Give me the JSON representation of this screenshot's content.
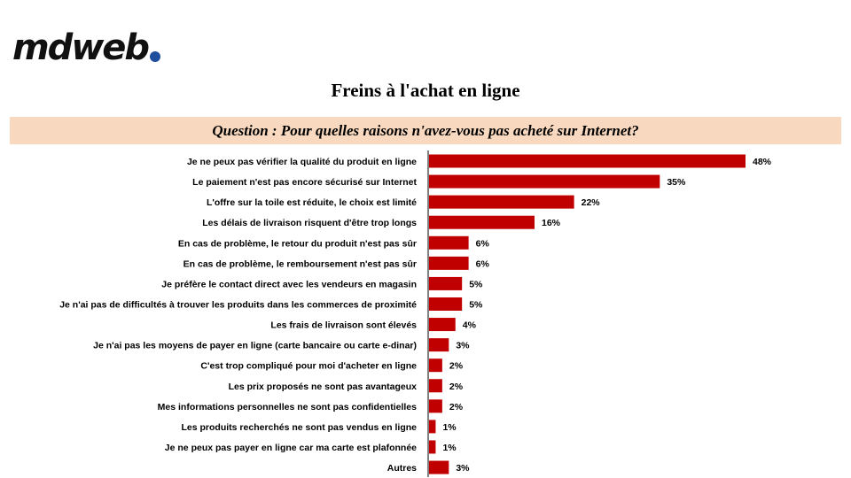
{
  "logo": {
    "text": "mdweb"
  },
  "title": "Freins à l'achat en ligne",
  "question": "Question :  Pour quelles raisons n'avez-vous pas acheté sur Internet?",
  "colors": {
    "bar": "#c00000",
    "question_bg": "#f8d9bf",
    "logo_dot": "#1f4e9c"
  },
  "chart_data": {
    "type": "bar",
    "orientation": "horizontal",
    "categories": [
      "Je ne peux pas vérifier la qualité du produit en ligne",
      "Le paiement n'est pas encore sécurisé sur Internet",
      "L'offre sur la toile est réduite, le choix est limité",
      "Les délais de livraison risquent d'être trop longs",
      "En cas de problème, le retour du produit n'est pas sûr",
      "En cas de problème, le remboursement n'est pas sûr",
      "Je préfère le contact direct avec les vendeurs en magasin",
      "Je n'ai pas de difficultés à trouver les produits dans les commerces de proximité",
      "Les frais de livraison sont élevés",
      "Je n'ai pas les moyens de payer en ligne (carte bancaire ou carte e-dinar)",
      "C'est trop compliqué pour moi d'acheter en ligne",
      "Les prix proposés ne sont pas avantageux",
      "Mes informations personnelles ne sont pas confidentielles",
      "Les produits recherchés ne sont pas vendus en ligne",
      "Je ne peux pas payer en ligne car ma carte est plafonnée",
      "Autres"
    ],
    "values": [
      48,
      35,
      22,
      16,
      6,
      6,
      5,
      5,
      4,
      3,
      2,
      2,
      2,
      1,
      1,
      3
    ],
    "value_labels": [
      "48%",
      "35%",
      "22%",
      "16%",
      "6%",
      "6%",
      "5%",
      "5%",
      "4%",
      "3%",
      "2%",
      "2%",
      "2%",
      "1%",
      "1%",
      "3%"
    ],
    "unit": "%",
    "grid": false,
    "legend": "none"
  }
}
